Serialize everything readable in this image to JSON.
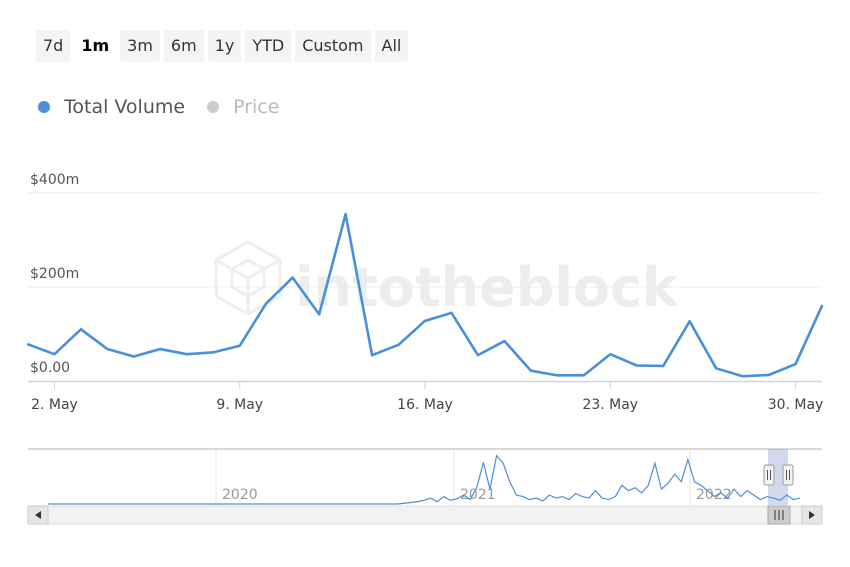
{
  "range_selector": {
    "buttons": [
      "7d",
      "1m",
      "3m",
      "6m",
      "1y",
      "YTD",
      "Custom",
      "All"
    ],
    "active": "1m"
  },
  "legend": {
    "items": [
      {
        "label": "Total Volume",
        "color": "#4a90d9",
        "active": true
      },
      {
        "label": "Price",
        "color": "#cccccc",
        "active": false
      }
    ]
  },
  "watermark": "intotheblock",
  "chart_data": {
    "type": "line",
    "series": [
      {
        "name": "Total Volume",
        "color": "#4a90d9",
        "x": [
          "2022-05-01",
          "2022-05-02",
          "2022-05-03",
          "2022-05-04",
          "2022-05-05",
          "2022-05-06",
          "2022-05-07",
          "2022-05-08",
          "2022-05-09",
          "2022-05-10",
          "2022-05-11",
          "2022-05-12",
          "2022-05-13",
          "2022-05-14",
          "2022-05-15",
          "2022-05-16",
          "2022-05-17",
          "2022-05-18",
          "2022-05-19",
          "2022-05-20",
          "2022-05-21",
          "2022-05-22",
          "2022-05-23",
          "2022-05-24",
          "2022-05-25",
          "2022-05-26",
          "2022-05-27",
          "2022-05-28",
          "2022-05-29",
          "2022-05-30",
          "2022-05-31"
        ],
        "values": [
          78,
          57,
          110,
          68,
          52,
          68,
          57,
          61,
          75,
          165,
          220,
          142,
          355,
          55,
          77,
          128,
          145,
          55,
          85,
          22,
          12,
          12,
          57,
          33,
          32,
          127,
          27,
          10,
          13,
          36,
          160
        ]
      }
    ],
    "y_ticks": [
      {
        "value": 0,
        "label": "$0.00"
      },
      {
        "value": 200,
        "label": "$200m"
      },
      {
        "value": 400,
        "label": "$400m"
      }
    ],
    "x_ticks": [
      {
        "x": "2022-05-02",
        "label": "2. May"
      },
      {
        "x": "2022-05-09",
        "label": "9. May"
      },
      {
        "x": "2022-05-16",
        "label": "16. May"
      },
      {
        "x": "2022-05-23",
        "label": "23. May"
      },
      {
        "x": "2022-05-30",
        "label": "30. May"
      }
    ],
    "ylim": [
      0,
      400
    ],
    "xlim": [
      "2022-05-01",
      "2022-05-31"
    ],
    "grid": true,
    "navigator": {
      "year_labels": [
        "2020",
        "2021",
        "2022"
      ],
      "series_values": [
        0,
        0,
        0,
        0,
        0,
        0,
        0,
        0,
        0,
        0,
        0,
        0,
        0,
        0,
        0,
        0,
        0,
        0,
        0,
        0,
        0,
        0,
        0,
        0,
        0,
        0,
        0,
        0,
        0,
        0,
        0,
        0,
        0,
        0,
        0,
        0,
        0,
        0,
        0,
        0,
        0,
        0,
        0,
        0,
        0,
        0,
        0,
        0,
        0,
        0,
        0,
        0,
        0,
        0,
        1,
        2,
        3,
        5,
        8,
        3,
        10,
        5,
        7,
        12,
        6,
        22,
        56,
        20,
        65,
        55,
        30,
        12,
        10,
        6,
        8,
        4,
        12,
        8,
        10,
        6,
        14,
        10,
        8,
        18,
        8,
        6,
        10,
        25,
        18,
        22,
        15,
        25,
        55,
        20,
        28,
        40,
        30,
        60,
        30,
        25,
        18,
        10,
        15,
        8,
        20,
        10,
        18,
        12,
        6,
        10,
        8,
        5,
        12,
        6,
        8
      ]
    }
  }
}
